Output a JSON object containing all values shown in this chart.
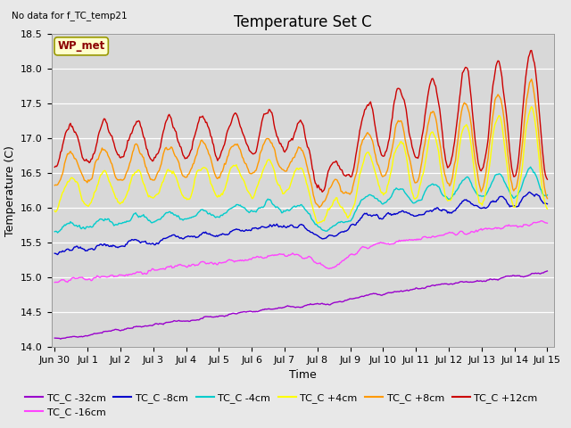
{
  "title": "Temperature Set C",
  "subtitle": "No data for f_TC_temp21",
  "xlabel": "Time",
  "ylabel": "Temperature (C)",
  "ylim": [
    14.0,
    18.5
  ],
  "series_colors": {
    "TC_C -32cm": "#9900cc",
    "TC_C -16cm": "#ff44ff",
    "TC_C -8cm": "#0000cc",
    "TC_C -4cm": "#00cccc",
    "TC_C +4cm": "#ffff00",
    "TC_C +8cm": "#ff9900",
    "TC_C +12cm": "#cc0000"
  },
  "legend_annotation": "WP_met",
  "background_color": "#e8e8e8",
  "plot_bg_color": "#d8d8d8",
  "grid_color": "#ffffff",
  "title_fontsize": 12,
  "axis_fontsize": 9,
  "tick_fontsize": 8,
  "legend_fontsize": 8,
  "n_points": 500,
  "seed": 42
}
